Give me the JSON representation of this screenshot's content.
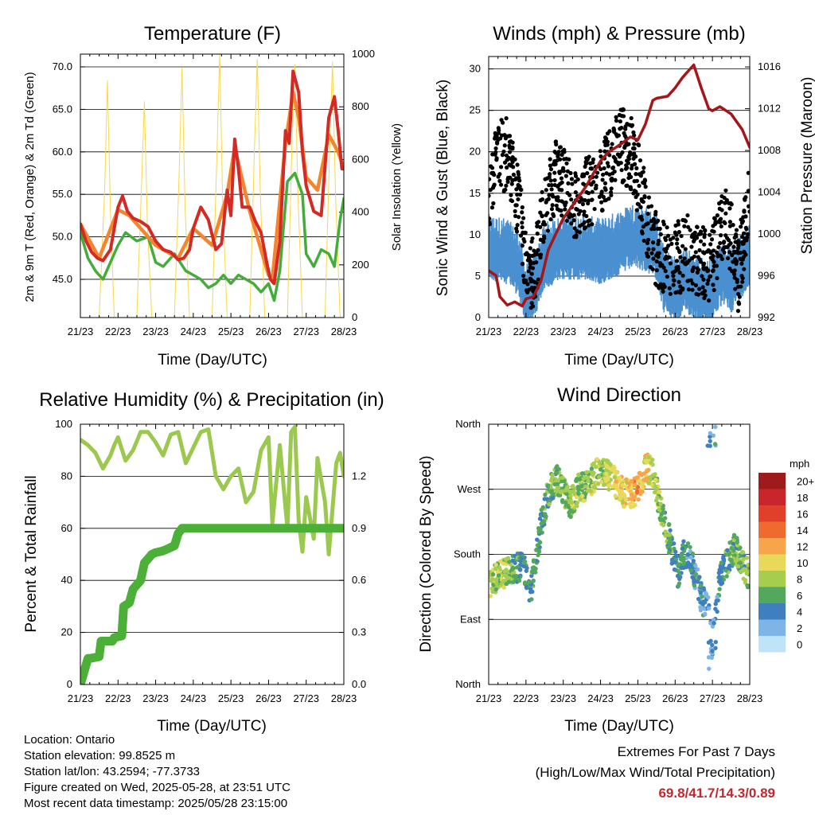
{
  "chart_data": [
    {
      "type": "line",
      "title": "Temperature (F)",
      "xlabel": "Time (Day/UTC)",
      "ylabel": "2m & 9m T (Red, Orange) & 2m Td (Green)",
      "y2label": "Solar Insolation (Yellow)",
      "x_ticks": [
        "21/23",
        "22/23",
        "23/23",
        "24/23",
        "25/23",
        "26/23",
        "27/23",
        "28/23"
      ],
      "ylim": [
        40.5,
        71.5
      ],
      "y_ticks": [
        "45.0",
        "50.0",
        "55.0",
        "60.0",
        "65.0",
        "70.0"
      ],
      "y2lim": [
        0,
        1000
      ],
      "y2_ticks": [
        "0",
        "200",
        "400",
        "600",
        "800",
        "1000"
      ],
      "grid": true,
      "colors": {
        "t2m": "#d42a25",
        "t9m": "#f5842f",
        "td": "#44ad3a",
        "solar": "#f6d94a"
      },
      "series": [
        {
          "axis": "left",
          "color_key": "t2m",
          "x": [
            0,
            0.15,
            0.3,
            0.45,
            0.6,
            0.8,
            1.0,
            1.12,
            1.25,
            1.4,
            1.6,
            1.8,
            2.0,
            2.2,
            2.4,
            2.6,
            2.75,
            2.9,
            3.0,
            3.2,
            3.4,
            3.6,
            3.75,
            3.9,
            4.0,
            4.1,
            4.2,
            4.3,
            4.5,
            4.65,
            4.8,
            4.95,
            5.05,
            5.15,
            5.3,
            5.45,
            5.55,
            5.65,
            5.8,
            5.9,
            6.0,
            6.2,
            6.4,
            6.6,
            6.75,
            6.85,
            6.95,
            7.0
          ],
          "values": [
            51.5,
            49.5,
            48.2,
            47.5,
            47.2,
            48.5,
            53.5,
            54.8,
            53,
            52.2,
            51.8,
            51.2,
            49.5,
            48.5,
            48.2,
            47.3,
            47.5,
            48.5,
            51,
            53.5,
            52,
            48.5,
            49.2,
            55.5,
            52.5,
            61.5,
            58,
            53.5,
            53.5,
            51.8,
            50.5,
            47,
            45,
            44.5,
            49.5,
            62.5,
            61,
            69.5,
            67,
            60,
            56,
            53,
            52.5,
            64,
            66.5,
            62.5,
            58,
            58
          ]
        },
        {
          "axis": "left",
          "color_key": "t9m",
          "x": [
            0,
            0.5,
            1.0,
            1.3,
            2.0,
            2.6,
            3.0,
            3.5,
            3.9,
            4.1,
            4.5,
            5.0,
            5.1,
            5.45,
            5.65,
            5.8,
            6.0,
            6.3,
            6.6,
            6.85,
            7.0
          ],
          "values": [
            51.5,
            47.5,
            53.2,
            52.5,
            49,
            47.5,
            51,
            49,
            55,
            60.5,
            53,
            45.5,
            45,
            61,
            67,
            64,
            57,
            55.5,
            62,
            60,
            58
          ]
        },
        {
          "axis": "left",
          "color_key": "td",
          "x": [
            0,
            0.2,
            0.4,
            0.6,
            0.8,
            1.0,
            1.2,
            1.5,
            1.8,
            2.0,
            2.2,
            2.5,
            2.8,
            3.0,
            3.2,
            3.4,
            3.6,
            3.8,
            4.0,
            4.2,
            4.4,
            4.6,
            4.8,
            5.0,
            5.15,
            5.3,
            5.5,
            5.7,
            5.9,
            6.0,
            6.2,
            6.4,
            6.6,
            6.75,
            6.9,
            7.0
          ],
          "values": [
            50.5,
            47.5,
            46,
            45,
            47,
            49,
            50.5,
            49.5,
            50,
            47,
            46.5,
            48,
            46,
            45.5,
            45,
            44,
            44.5,
            45.5,
            44.5,
            45.5,
            45,
            44.5,
            43.5,
            44.5,
            42.5,
            46,
            56.5,
            57.5,
            55,
            48,
            46.5,
            48.5,
            48,
            46.5,
            52,
            54.5
          ]
        },
        {
          "axis": "right",
          "color_key": "solar",
          "x": [
            0,
            0.3,
            0.5,
            0.65,
            0.72,
            0.8,
            0.9,
            1.2,
            1.5,
            1.62,
            1.7,
            1.78,
            1.9,
            2.3,
            2.5,
            2.62,
            2.7,
            2.78,
            2.9,
            3.3,
            3.5,
            3.62,
            3.7,
            3.78,
            3.9,
            4.3,
            4.5,
            4.62,
            4.7,
            4.78,
            4.9,
            5.3,
            5.5,
            5.62,
            5.7,
            5.78,
            5.9,
            6.3,
            6.5,
            6.62,
            6.7,
            6.78,
            6.9,
            7.0
          ],
          "values": [
            0,
            0,
            0,
            500,
            900,
            400,
            0,
            0,
            0,
            480,
            820,
            350,
            0,
            0,
            0,
            530,
            950,
            420,
            0,
            0,
            0,
            580,
            1000,
            450,
            0,
            0,
            0,
            620,
            980,
            480,
            0,
            0,
            0,
            640,
            960,
            470,
            0,
            0,
            0,
            620,
            970,
            460,
            0,
            0
          ]
        }
      ]
    },
    {
      "type": "scatter",
      "title": "Winds (mph) & Pressure (mb)",
      "xlabel": "Time (Day/UTC)",
      "ylabel": "Sonic Wind & Gust (Blue, Black)",
      "y2label": "Station Pressure (Maroon)",
      "x_ticks": [
        "21/23",
        "22/23",
        "23/23",
        "24/23",
        "25/23",
        "26/23",
        "27/23",
        "28/23"
      ],
      "ylim": [
        0,
        31.5
      ],
      "y_ticks": [
        "0",
        "5",
        "10",
        "15",
        "20",
        "25",
        "30"
      ],
      "y2lim": [
        992,
        1017
      ],
      "y2_ticks": [
        "992",
        "996",
        "1000",
        "1004",
        "1008",
        "1012",
        "1016"
      ],
      "grid": true,
      "colors": {
        "wind": "#4a90d0",
        "gust": "#000000",
        "pressure": "#a4161a"
      },
      "pressure": {
        "x": [
          0,
          0.2,
          0.3,
          0.5,
          0.7,
          0.9,
          1.0,
          1.2,
          1.4,
          1.6,
          1.8,
          2.0,
          2.3,
          2.6,
          3.0,
          3.2,
          3.5,
          3.8,
          4.0,
          4.2,
          4.4,
          4.5,
          4.8,
          5.0,
          5.2,
          5.5,
          5.7,
          5.9,
          6.0,
          6.2,
          6.5,
          6.8,
          7.0
        ],
        "values": [
          996.5,
          996.0,
          994.0,
          993.2,
          993.5,
          993.1,
          993.8,
          994.0,
          995.5,
          998.5,
          1000.0,
          1001.5,
          1003.0,
          1004.5,
          1007.0,
          1007.8,
          1008.5,
          1009.3,
          1009.0,
          1010.5,
          1012.8,
          1013.0,
          1013.2,
          1014.0,
          1015.0,
          1016.2,
          1014.0,
          1012.0,
          1011.8,
          1012.2,
          1011.5,
          1010.0,
          1008.3
        ]
      },
      "wind_trend": {
        "x": [
          0,
          0.5,
          0.8,
          1.0,
          1.3,
          1.5,
          2.0,
          2.5,
          3.0,
          3.5,
          3.9,
          4.2,
          4.5,
          4.7,
          5.0,
          5.3,
          5.6,
          5.9,
          6.1,
          6.3,
          6.5,
          6.7,
          7.0
        ],
        "values": [
          8.5,
          8.0,
          6.5,
          2.5,
          4.5,
          7.5,
          8.5,
          8.5,
          8.0,
          9.0,
          10.0,
          9.5,
          8.5,
          4.5,
          3.5,
          4.5,
          3.5,
          3.0,
          4.5,
          5.5,
          4.5,
          6.0,
          7.5
        ]
      },
      "gust_trend": {
        "x": [
          0,
          0.2,
          0.5,
          0.8,
          1.0,
          1.1,
          1.3,
          1.5,
          1.8,
          2.0,
          2.3,
          2.6,
          3.0,
          3.3,
          3.5,
          3.8,
          4.0,
          4.3,
          4.5,
          4.7,
          5.0,
          5.3,
          5.6,
          5.9,
          6.1,
          6.3,
          6.5,
          6.7,
          7.0
        ],
        "values": [
          15,
          19,
          20,
          14,
          6,
          4,
          7,
          13,
          17,
          16,
          14,
          15,
          16,
          19,
          21,
          20,
          17,
          11,
          8,
          7,
          7,
          8,
          7,
          6,
          8,
          12,
          10,
          5,
          16
        ]
      }
    },
    {
      "type": "line",
      "title": "Relative Humidity (%) & Precipitation (in)",
      "xlabel": "Time (Day/UTC)",
      "ylabel": "Percent & Total Rainfall",
      "x_ticks": [
        "21/23",
        "22/23",
        "23/23",
        "24/23",
        "25/23",
        "26/23",
        "27/23",
        "28/23"
      ],
      "ylim": [
        0,
        100
      ],
      "y_ticks": [
        "0",
        "20",
        "40",
        "60",
        "80",
        "100"
      ],
      "y2lim": [
        0,
        1.5
      ],
      "y2_ticks": [
        "0.0",
        "0.3",
        "0.6",
        "0.9",
        "1.2"
      ],
      "grid": true,
      "colors": {
        "rh": "#9bc94f",
        "precip": "#4caf38"
      },
      "series": [
        {
          "name": "RH",
          "axis": "left",
          "color_key": "rh",
          "x": [
            0,
            0.2,
            0.4,
            0.6,
            0.8,
            0.9,
            1.0,
            1.2,
            1.4,
            1.6,
            1.8,
            2.0,
            2.2,
            2.4,
            2.6,
            2.8,
            3.0,
            3.2,
            3.4,
            3.6,
            3.8,
            4.0,
            4.2,
            4.4,
            4.6,
            4.8,
            5.0,
            5.1,
            5.3,
            5.5,
            5.6,
            5.7,
            5.8,
            5.9,
            6.0,
            6.2,
            6.3,
            6.5,
            6.6,
            6.8,
            6.9,
            7.0
          ],
          "values": [
            94,
            92,
            89,
            83,
            88,
            92,
            95,
            86,
            90,
            97,
            97,
            93,
            88,
            96,
            97,
            85,
            91,
            97,
            98,
            80,
            75,
            80,
            83,
            70,
            74,
            90,
            95,
            62,
            92,
            60,
            97,
            99,
            63,
            51,
            72,
            56,
            87,
            70,
            50,
            85,
            89,
            80
          ]
        },
        {
          "name": "Precip",
          "axis": "right",
          "color_key": "precip",
          "x": [
            0,
            0.2,
            0.25,
            0.5,
            0.55,
            0.85,
            0.9,
            1.1,
            1.15,
            1.3,
            1.4,
            1.6,
            1.7,
            1.9,
            2.0,
            2.2,
            2.3,
            2.5,
            2.6,
            2.7,
            3.0,
            3.2,
            3.3,
            7.0
          ],
          "values": [
            0,
            0.15,
            0.15,
            0.16,
            0.25,
            0.25,
            0.27,
            0.28,
            0.45,
            0.47,
            0.55,
            0.6,
            0.7,
            0.75,
            0.76,
            0.77,
            0.78,
            0.8,
            0.87,
            0.9,
            0.9,
            0.9,
            0.9,
            0.9
          ]
        }
      ]
    },
    {
      "type": "scatter",
      "title": "Wind Direction",
      "xlabel": "Time (Day/UTC)",
      "ylabel": "Direction (Colored By Speed)",
      "x_ticks": [
        "21/23",
        "22/23",
        "23/23",
        "24/23",
        "25/23",
        "26/23",
        "27/23",
        "28/23"
      ],
      "y_ticks": [
        "North",
        "East",
        "South",
        "West",
        "North"
      ],
      "y_values": [
        0,
        90,
        180,
        270,
        360
      ],
      "grid": true,
      "legend": {
        "title": "mph",
        "placement": "right",
        "labels": [
          "20+",
          "18",
          "16",
          "14",
          "12",
          "10",
          "8",
          "6",
          "4",
          "2",
          "0"
        ],
        "colors": [
          "#9e1b1c",
          "#c9262c",
          "#e0402a",
          "#ef6a2e",
          "#f7a54a",
          "#e8d95a",
          "#a7cd4f",
          "#53a85d",
          "#3f7ebf",
          "#7db6e6",
          "#bfe3f7"
        ]
      },
      "direction_trend": {
        "x": [
          0,
          0.3,
          0.6,
          0.9,
          1.0,
          1.1,
          1.2,
          1.4,
          1.6,
          1.8,
          2.0,
          2.2,
          2.4,
          2.6,
          2.8,
          3.0,
          3.2,
          3.4,
          3.6,
          3.8,
          4.0,
          4.1,
          4.2,
          4.4,
          4.6,
          4.8,
          5.0,
          5.1,
          5.2,
          5.4,
          5.6,
          5.7,
          5.9,
          6.0,
          6.2,
          6.4,
          6.6,
          6.8,
          7.0
        ],
        "values": [
          140,
          150,
          158,
          165,
          150,
          120,
          150,
          220,
          265,
          285,
          270,
          250,
          270,
          275,
          285,
          300,
          290,
          280,
          265,
          262,
          270,
          280,
          300,
          295,
          245,
          210,
          170,
          150,
          180,
          175,
          140,
          120,
          100,
          60,
          150,
          170,
          190,
          165,
          150
        ]
      }
    }
  ],
  "x_axis_label": "Time (Day/UTC)",
  "station": {
    "location": "Location: Ontario",
    "elevation": "Station elevation: 99.8525 m",
    "latlon": "Station lat/lon: 43.2594; -77.3733",
    "created": "Figure created on Wed, 2025-05-28, at 23:51 UTC",
    "latest": "Most recent data timestamp: 2025/05/28 23:15:00"
  },
  "extremes": {
    "heading": "Extremes For Past 7 Days",
    "subheading": "(High/Low/Max Wind/Total Precipitation)",
    "values": "69.8/41.7/14.3/0.89"
  }
}
